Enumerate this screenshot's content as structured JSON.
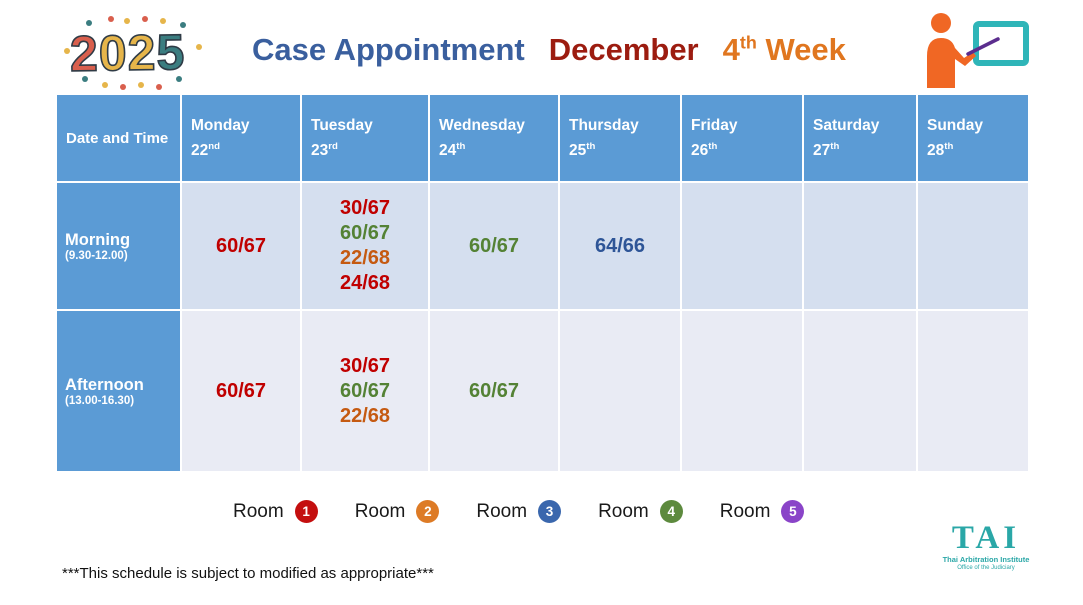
{
  "year_badge": {
    "year": "2025"
  },
  "title": {
    "main": "Case Appointment",
    "month": "December",
    "week_number": "4",
    "week_suffix": "th",
    "week_word": "Week"
  },
  "table": {
    "corner_label": "Date and Time",
    "days": [
      {
        "name": "Monday",
        "date": "22",
        "suffix": "nd"
      },
      {
        "name": "Tuesday",
        "date": "23",
        "suffix": "rd"
      },
      {
        "name": "Wednesday",
        "date": "24",
        "suffix": "th"
      },
      {
        "name": "Thursday",
        "date": "25",
        "suffix": "th"
      },
      {
        "name": "Friday",
        "date": "26",
        "suffix": "th"
      },
      {
        "name": "Saturday",
        "date": "27",
        "suffix": "th"
      },
      {
        "name": "Sunday",
        "date": "28",
        "suffix": "th"
      }
    ],
    "rows": [
      {
        "label": "Morning",
        "time_range": "(9.30-12.00)",
        "cells": [
          [
            {
              "text": "60/67",
              "color": "red"
            }
          ],
          [
            {
              "text": "30/67",
              "color": "red"
            },
            {
              "text": "60/67",
              "color": "green"
            },
            {
              "text": "22/68",
              "color": "orange"
            },
            {
              "text": "24/68",
              "color": "red"
            }
          ],
          [
            {
              "text": "60/67",
              "color": "green"
            }
          ],
          [
            {
              "text": "64/66",
              "color": "blue"
            }
          ],
          [],
          [],
          []
        ]
      },
      {
        "label": "Afternoon",
        "time_range": "(13.00-16.30)",
        "cells": [
          [
            {
              "text": "60/67",
              "color": "red"
            }
          ],
          [
            {
              "text": "30/67",
              "color": "red"
            },
            {
              "text": "60/67",
              "color": "green"
            },
            {
              "text": "22/68",
              "color": "orange"
            }
          ],
          [
            {
              "text": "60/67",
              "color": "green"
            }
          ],
          [],
          [],
          [],
          []
        ]
      }
    ]
  },
  "value_colors": {
    "red": "#c00000",
    "green": "#548235",
    "orange": "#c55a11",
    "blue": "#2e5597"
  },
  "legend": {
    "label": "Room",
    "rooms": [
      {
        "number": "1",
        "color": "#c40f0f"
      },
      {
        "number": "2",
        "color": "#dd7b26"
      },
      {
        "number": "3",
        "color": "#3a67ad"
      },
      {
        "number": "4",
        "color": "#5d8a3e"
      },
      {
        "number": "5",
        "color": "#8a44c8"
      }
    ]
  },
  "footnote": "***This schedule is subject to modified as appropriate***",
  "org_logo": {
    "acronym": "TAI",
    "line1": "Thai Arbitration Institute",
    "line2": "Office of the Judiciary"
  },
  "theme": {
    "header_blue": "#5b9bd5",
    "morning_cell_bg": "#d5dfef",
    "afternoon_cell_bg": "#e9ebf4",
    "title_blue": "#3a5f9e",
    "month_red": "#9c1c10",
    "week_orange": "#e0761f",
    "logo_teal": "#2aa7a7"
  }
}
